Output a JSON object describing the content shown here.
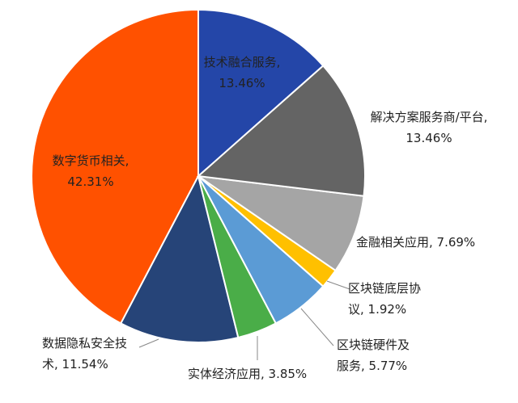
{
  "chart_data": {
    "type": "pie",
    "values": [
      13.46,
      13.46,
      7.69,
      1.92,
      5.77,
      3.85,
      11.54,
      42.31
    ],
    "value_labels": [
      "技术融合服务, 13.46%",
      "解决方案服务商/平台, 13.46%",
      "金融相关应用, 7.69%",
      "区块链底层协议, 1.92%",
      "区块链硬件及服务, 5.77%",
      "实体经济应用, 3.85%",
      "数据隐私安全技术, 11.54%",
      "数字货币相关, 42.31%"
    ],
    "colors": [
      "#2446a8",
      "#646464",
      "#a5a5a5",
      "#ffc000",
      "#5b9bd5",
      "#4aad48",
      "#264478",
      "#ff5100"
    ]
  }
}
